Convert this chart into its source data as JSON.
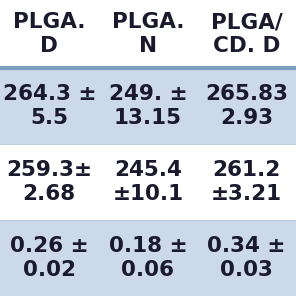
{
  "col_headers": [
    "PLGA.\nD",
    "PLGA.\nN",
    "PLGA/\nCD. D"
  ],
  "rows": [
    [
      "264.3 ±\n5.5",
      "249. ±\n13.15",
      "265.83\n2.93"
    ],
    [
      "259.3±\n2.68",
      "245.4\n±10.1",
      "261.2\n±3.21"
    ],
    [
      "0.26 ±\n0.02",
      "0.18 ±\n0.06",
      "0.34 ±\n0.03"
    ]
  ],
  "row_bg_colors": [
    "#ccd9e8",
    "#ffffff",
    "#ccd9e8"
  ],
  "header_bg_color": "#ffffff",
  "header_line_color": "#7a9fc0",
  "text_color": "#1a1a2e",
  "font_size": 15.5,
  "header_font_size": 15.5
}
